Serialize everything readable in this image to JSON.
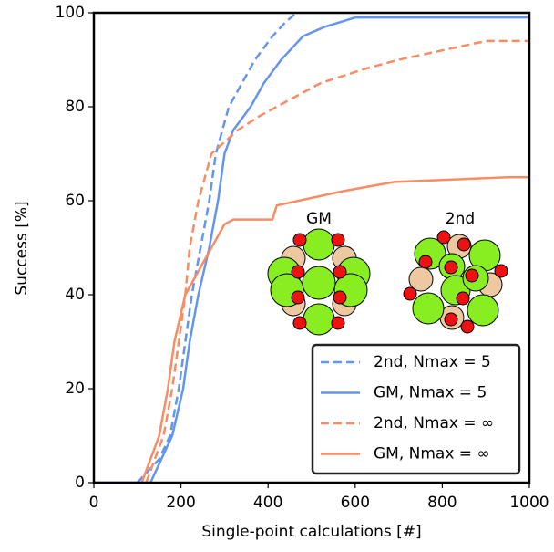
{
  "chart_data": {
    "type": "line",
    "xlabel": "Single-point calculations [#]",
    "ylabel": "Success [%]",
    "xlim": [
      0,
      1000
    ],
    "ylim": [
      0,
      100
    ],
    "xticks": [
      0,
      200,
      400,
      600,
      800,
      1000
    ],
    "yticks": [
      0,
      20,
      40,
      60,
      80,
      100
    ],
    "legend": "lower right",
    "annotations": [
      "GM",
      "2nd"
    ],
    "series": [
      {
        "name": "2nd, Nmax = 5",
        "color": "#6495ed",
        "linestyle": "dashed",
        "x": [
          100,
          150,
          175,
          195,
          210,
          225,
          245,
          265,
          280,
          310,
          340,
          370,
          410,
          440,
          465
        ],
        "values": [
          0,
          5,
          10,
          20,
          30,
          40,
          50,
          60,
          70,
          80,
          85,
          90,
          95,
          98,
          100
        ]
      },
      {
        "name": "GM, Nmax = 5",
        "color": "#6495ed",
        "linestyle": "solid",
        "x": [
          0,
          130,
          180,
          205,
          220,
          240,
          265,
          285,
          300,
          320,
          360,
          390,
          430,
          480,
          530,
          600,
          1000
        ],
        "values": [
          0,
          0,
          10,
          20,
          30,
          40,
          50,
          60,
          70,
          75,
          80,
          85,
          90,
          95,
          97,
          99,
          99
        ]
      },
      {
        "name": "2nd, Nmax = ∞",
        "color": "#f88c64",
        "linestyle": "dashed",
        "x": [
          120,
          160,
          180,
          195,
          210,
          220,
          240,
          270,
          330,
          380,
          420,
          520,
          620,
          700,
          800,
          900,
          1000
        ],
        "values": [
          0,
          10,
          20,
          30,
          40,
          50,
          60,
          70,
          75,
          78,
          80,
          85,
          88,
          90,
          92,
          94,
          94
        ]
      },
      {
        "name": "GM, Nmax = ∞",
        "color": "#f88c64",
        "linestyle": "solid",
        "x": [
          110,
          150,
          170,
          185,
          210,
          270,
          300,
          320,
          410,
          420,
          520,
          570,
          690,
          950,
          1000
        ],
        "values": [
          0,
          10,
          20,
          30,
          40,
          50,
          55,
          56,
          56,
          59,
          61,
          62,
          64,
          65,
          65
        ]
      }
    ]
  }
}
